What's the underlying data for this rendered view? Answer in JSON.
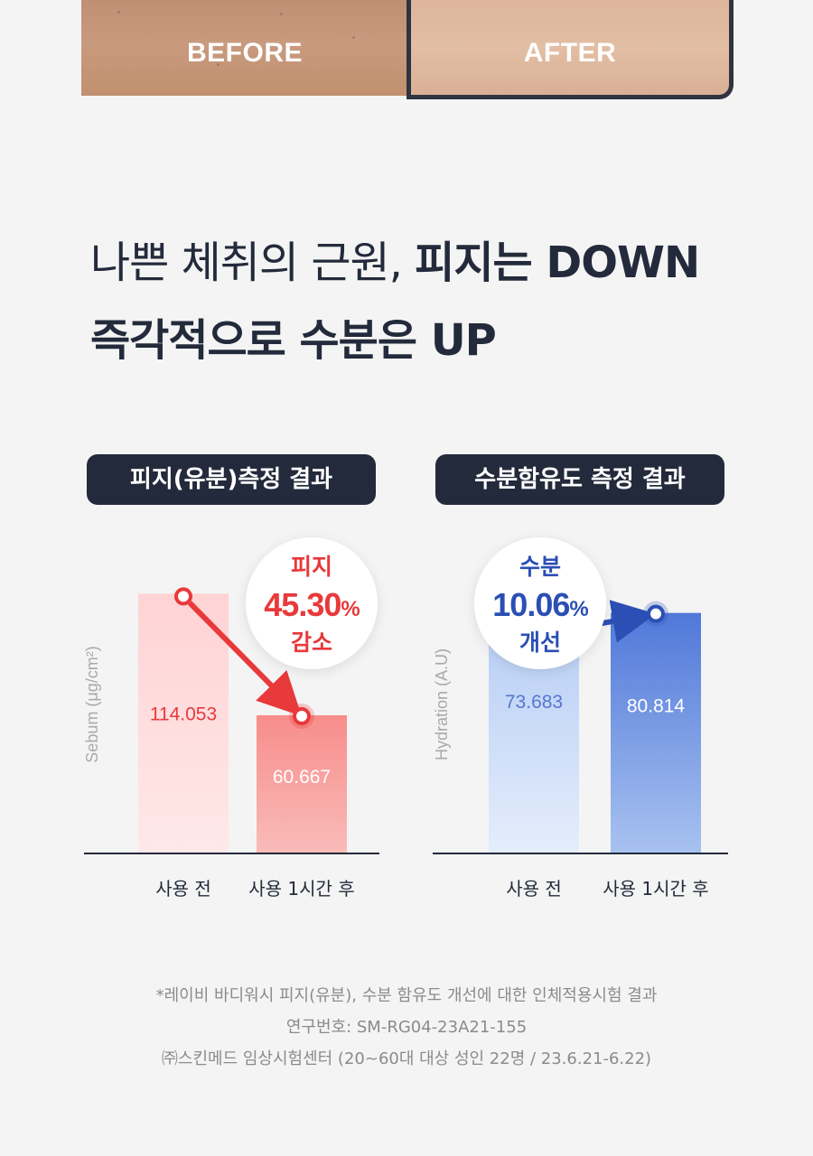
{
  "photos": {
    "before_label": "BEFORE",
    "after_label": "AFTER"
  },
  "headline": {
    "line1_light": "나쁜 체취의 근원, ",
    "line1_bold": "피지는 DOWN",
    "line2_bold": "즉각적으로 수분은 UP"
  },
  "chart_data": [
    {
      "type": "bar",
      "title": "피지(유분)측정 결과",
      "ylabel": "Sebum (μg/cm²)",
      "categories": [
        "사용 전",
        "사용 1시간 후"
      ],
      "values": [
        114.053,
        60.667
      ],
      "value_labels": [
        "114.053",
        "60.667"
      ],
      "ylim": [
        0,
        115
      ],
      "colors": {
        "accent": "#e8393b",
        "bar_light": "#ffd9da",
        "bar_strong": "#f6938f"
      },
      "badge": {
        "top": "피지",
        "value": "45.30",
        "unit": "%",
        "bottom": "감소"
      }
    },
    {
      "type": "bar",
      "title": "수분함유도 측정 결과",
      "ylabel": "Hydration (A.U)",
      "categories": [
        "사용 전",
        "사용 1시간 후"
      ],
      "values": [
        73.683,
        80.814
      ],
      "value_labels": [
        "73.683",
        "80.814"
      ],
      "ylim": [
        0,
        88
      ],
      "colors": {
        "accent": "#2b4fb4",
        "bar_light": "#c8d9f7",
        "bar_strong": "#5b82de"
      },
      "badge": {
        "top": "수분",
        "value": "10.06",
        "unit": "%",
        "bottom": "개선"
      }
    }
  ],
  "footnote": {
    "line1": "*레이비 바디워시 피지(유분), 수분 함유도 개선에 대한 인체적용시험 결과",
    "line2": "연구번호: SM-RG04-23A21-155",
    "line3": "㈜스킨메드 임상시험센터 (20~60대 대상 성인 22명 / 23.6.21-6.22)"
  }
}
